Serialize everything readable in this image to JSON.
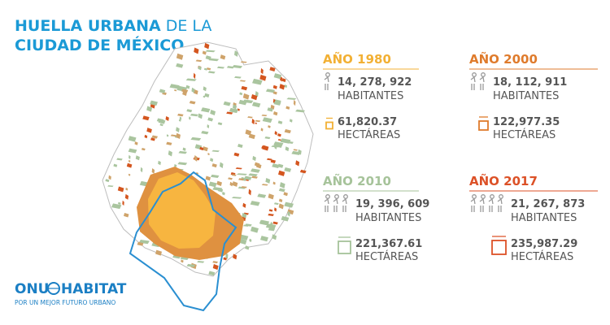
{
  "header": {
    "title_bold": "HUELLA URBANA",
    "title_light": "DE LA",
    "title_line2": "CIUDAD DE MÉXICO"
  },
  "panels": [
    {
      "year": "AÑO 1980",
      "population": "14, 278, 922",
      "population_unit": "HABITANTES",
      "area": "61,820.37",
      "area_unit": "HECTÁREAS"
    },
    {
      "year": "AÑO 2000",
      "population": "18, 112, 911",
      "population_unit": "HABITANTES",
      "area": "122,977.35",
      "area_unit": "HECTÁREAS"
    },
    {
      "year": "AÑO 2010",
      "population": "19, 396, 609",
      "population_unit": "HABITANTES",
      "area": "221,367.61",
      "area_unit": "HECTÁREAS"
    },
    {
      "year": "AÑO 2017",
      "population": "21, 267, 873",
      "population_unit": "HABITANTES",
      "area": "235,987.29",
      "area_unit": "HECTÁREAS"
    }
  ],
  "logo": {
    "left": "ONU",
    "right": "HABITAT",
    "tagline": "POR UN MEJOR FUTURO URBANO"
  }
}
